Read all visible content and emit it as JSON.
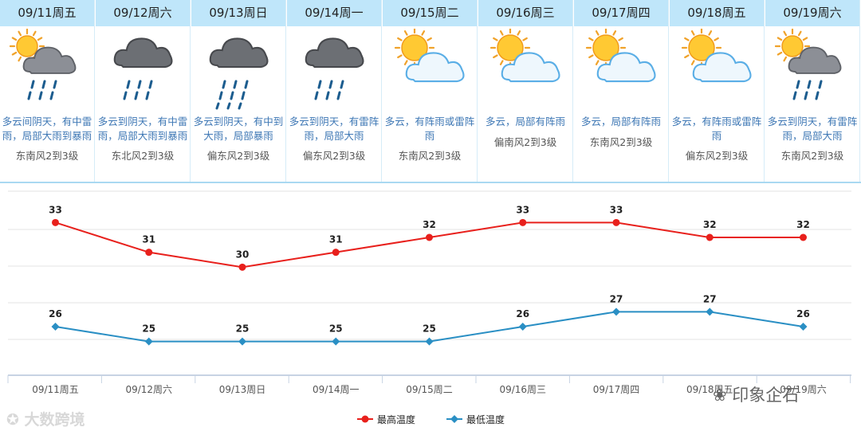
{
  "days": [
    {
      "date": "09/11周五",
      "icon": "sun-cloud-rain-icon",
      "desc": "多云间阴天，有中雷雨，局部大雨到暴雨",
      "wind": "东南风2到3级"
    },
    {
      "date": "09/12周六",
      "icon": "dark-cloud-rain-icon",
      "desc": "多云到阴天，有中雷雨，局部大雨到暴雨",
      "wind": "东北风2到3级"
    },
    {
      "date": "09/13周日",
      "icon": "dark-cloud-heavy-rain-icon",
      "desc": "多云到阴天，有中到大雨，局部暴雨",
      "wind": "偏东风2到3级"
    },
    {
      "date": "09/14周一",
      "icon": "dark-cloud-rain-icon",
      "desc": "多云到阴天，有雷阵雨，局部大雨",
      "wind": "偏东风2到3级"
    },
    {
      "date": "09/15周二",
      "icon": "sun-cloud-icon",
      "desc": "多云，有阵雨或雷阵雨",
      "wind": "东南风2到3级"
    },
    {
      "date": "09/16周三",
      "icon": "sun-cloud-icon",
      "desc": "多云，局部有阵雨",
      "wind": "偏南风2到3级"
    },
    {
      "date": "09/17周四",
      "icon": "sun-cloud-icon",
      "desc": "多云，局部有阵雨",
      "wind": "东南风2到3级"
    },
    {
      "date": "09/18周五",
      "icon": "sun-cloud-icon",
      "desc": "多云，有阵雨或雷阵雨",
      "wind": "偏东风2到3级"
    },
    {
      "date": "09/19周六",
      "icon": "sun-cloud-rain-icon",
      "desc": "多云到阴天，有雷阵雨，局部大雨",
      "wind": "东南风2到3级"
    }
  ],
  "chart_data": {
    "type": "line",
    "categories": [
      "09/11周五",
      "09/12周六",
      "09/13周日",
      "09/14周一",
      "09/15周二",
      "09/16周三",
      "09/17周四",
      "09/18周五",
      "09/19周六"
    ],
    "series": [
      {
        "name": "最高温度",
        "color": "#e8201c",
        "values": [
          33,
          31,
          30,
          31,
          32,
          33,
          33,
          32,
          32
        ]
      },
      {
        "name": "最低温度",
        "color": "#2a8fc4",
        "values": [
          26,
          25,
          25,
          25,
          25,
          26,
          27,
          27,
          26
        ]
      }
    ],
    "legend_position": "bottom-center",
    "grid": true
  },
  "watermarks": {
    "left": "大数跨境",
    "right": "印象企石"
  }
}
